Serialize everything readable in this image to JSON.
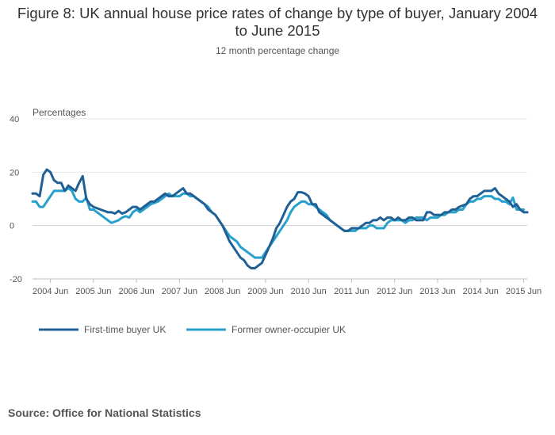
{
  "title": "Figure 8: UK annual house price rates of change by type of buyer, January 2004 to June 2015",
  "subtitle": "12 month percentage change",
  "source": "Source: Office for National Statistics",
  "chart_data": {
    "type": "line",
    "title": "Figure 8: UK annual house price rates of change by type of buyer, January 2004 to June 2015",
    "subtitle": "12 month percentage change",
    "ylabel": "Percentages",
    "xlabel": "",
    "ylim": [
      -20,
      40
    ],
    "yticks": [
      40,
      20,
      0,
      -20
    ],
    "x_tick_labels": [
      "2004 Jun",
      "2005 Jun",
      "2006 Jun",
      "2007 Jun",
      "2008 Jun",
      "2009 Jun",
      "2010 Jun",
      "2011 Jun",
      "2012 Jun",
      "2013 Jun",
      "2014 Jun",
      "2015 Jun"
    ],
    "x_range": [
      "Jan 2004",
      "Jun 2015"
    ],
    "grid": "horizontal",
    "legend_position": "bottom-left",
    "series": [
      {
        "name": "First-time buyer UK",
        "color": "#206095",
        "values": [
          12,
          12,
          11,
          19,
          21,
          20,
          17,
          16,
          16,
          13,
          15,
          14,
          13,
          16,
          18.5,
          10,
          8,
          7,
          6.5,
          6,
          5.5,
          5,
          5,
          4.5,
          5.5,
          4.5,
          5,
          6,
          7,
          7,
          6,
          7,
          8,
          9,
          9,
          10,
          11,
          12,
          11,
          11,
          12,
          13,
          14,
          12,
          12,
          11,
          10,
          9,
          8,
          6,
          5,
          4,
          2,
          0,
          -3,
          -6,
          -8,
          -10,
          -12,
          -13,
          -15,
          -16,
          -16,
          -15,
          -14,
          -11,
          -8,
          -5,
          -1,
          1,
          4,
          7,
          9,
          10,
          12.5,
          12.5,
          12,
          11,
          8,
          8,
          5,
          4,
          3,
          2,
          1,
          0,
          -1,
          -2,
          -2,
          -1,
          -1,
          -1,
          0,
          1,
          1,
          2,
          2,
          3,
          2,
          3,
          3,
          2,
          3,
          2,
          2,
          3,
          3,
          2,
          2,
          2,
          5,
          5,
          4,
          4,
          4,
          5,
          5,
          6,
          6,
          7,
          7.5,
          8,
          10,
          11,
          11,
          12,
          13,
          13,
          13,
          14,
          12,
          11,
          10,
          9,
          7,
          8,
          6,
          5,
          5
        ]
      },
      {
        "name": "Former owner-occupier UK",
        "color": "#27a0cc",
        "values": [
          9,
          9,
          7,
          7,
          9,
          11,
          13,
          13,
          13,
          13,
          14,
          13,
          10,
          9,
          9,
          10.5,
          6,
          6,
          5,
          4,
          3,
          2,
          1,
          1.5,
          2,
          3,
          3.5,
          3,
          5,
          6,
          5,
          6,
          7,
          8,
          8.5,
          9,
          10,
          11,
          12,
          11,
          11,
          11,
          12,
          12,
          11,
          11,
          10,
          9,
          8,
          7,
          5,
          4,
          2,
          0,
          -2,
          -4,
          -5,
          -6,
          -8,
          -9,
          -10,
          -11,
          -12,
          -12,
          -12,
          -10,
          -8,
          -6,
          -4,
          -2,
          0,
          2,
          5,
          7,
          8,
          9,
          9,
          8,
          8,
          7,
          6,
          5,
          4,
          2,
          1,
          0,
          -1,
          -2,
          -2,
          -2,
          -2,
          -1,
          -1,
          -1,
          0,
          0,
          -1,
          -1,
          -1,
          1,
          2,
          2,
          2,
          2,
          1,
          2,
          2,
          3,
          3,
          3,
          2,
          3,
          3,
          3,
          4,
          4,
          5,
          5,
          5,
          6,
          6,
          8,
          9,
          9,
          10,
          10,
          11,
          11,
          11,
          10,
          10,
          9,
          9,
          8,
          10.5,
          6,
          6,
          6
        ]
      }
    ]
  }
}
